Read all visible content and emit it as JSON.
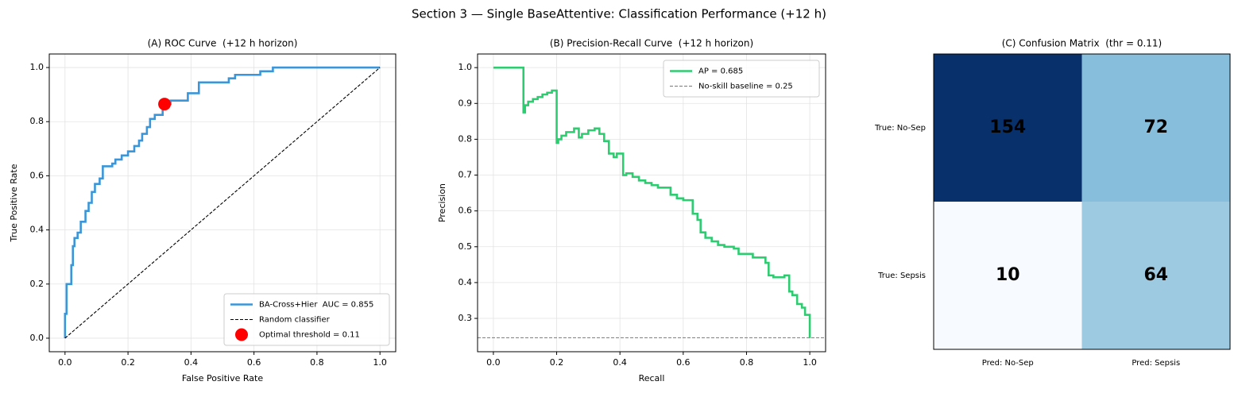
{
  "title": "Section 3 — Single BaseAttentive: Classification Performance (+12 h)",
  "chart_data": [
    {
      "type": "line",
      "title": "(A) ROC Curve  (+12 h horizon)",
      "x_label": "False Positive Rate",
      "y_label": "True Positive Rate",
      "xlim": [
        -0.05,
        1.05
      ],
      "ylim": [
        -0.05,
        1.05
      ],
      "xticks": [
        {
          "value": 0,
          "label": "0.0"
        },
        {
          "value": 0.2,
          "label": "0.2"
        },
        {
          "value": 0.4,
          "label": "0.4"
        },
        {
          "value": 0.6,
          "label": "0.6"
        },
        {
          "value": 0.8,
          "label": "0.8"
        },
        {
          "value": 1,
          "label": "1.0"
        }
      ],
      "yticks": [
        {
          "value": 0,
          "label": "0.0"
        },
        {
          "value": 0.2,
          "label": "0.2"
        },
        {
          "value": 0.4,
          "label": "0.4"
        },
        {
          "value": 0.6,
          "label": "0.6"
        },
        {
          "value": 0.8,
          "label": "0.8"
        },
        {
          "value": 1,
          "label": "1.0"
        }
      ],
      "grid": true,
      "legend": "lower-right",
      "series": [
        {
          "name": "BA-Cross+Hier  AUC = 0.855",
          "color": "#3a96d8",
          "style": "solid",
          "x": [
            0,
            0,
            0.005,
            0.005,
            0.02,
            0.02,
            0.025,
            0.025,
            0.03,
            0.03,
            0.04,
            0.04,
            0.05,
            0.05,
            0.065,
            0.065,
            0.075,
            0.075,
            0.085,
            0.085,
            0.095,
            0.095,
            0.11,
            0.11,
            0.12,
            0.12,
            0.15,
            0.15,
            0.16,
            0.16,
            0.18,
            0.18,
            0.2,
            0.2,
            0.22,
            0.22,
            0.235,
            0.235,
            0.245,
            0.245,
            0.26,
            0.26,
            0.27,
            0.27,
            0.285,
            0.285,
            0.31,
            0.31,
            0.335,
            0.335,
            0.39,
            0.39,
            0.425,
            0.425,
            0.52,
            0.52,
            0.54,
            0.54,
            0.62,
            0.62,
            0.66,
            0.66,
            1.0
          ],
          "values": [
            0,
            0.09,
            0.09,
            0.2,
            0.2,
            0.27,
            0.27,
            0.34,
            0.34,
            0.37,
            0.37,
            0.39,
            0.39,
            0.43,
            0.43,
            0.47,
            0.47,
            0.5,
            0.5,
            0.54,
            0.54,
            0.57,
            0.57,
            0.59,
            0.59,
            0.635,
            0.635,
            0.645,
            0.645,
            0.66,
            0.66,
            0.675,
            0.675,
            0.69,
            0.69,
            0.71,
            0.71,
            0.73,
            0.73,
            0.755,
            0.755,
            0.78,
            0.78,
            0.81,
            0.81,
            0.825,
            0.825,
            0.865,
            0.865,
            0.878,
            0.878,
            0.905,
            0.905,
            0.945,
            0.945,
            0.96,
            0.96,
            0.973,
            0.973,
            0.986,
            0.986,
            1.0,
            1.0
          ]
        },
        {
          "name": "Random classifier",
          "color": "#000000",
          "style": "dashed",
          "x": [
            0,
            1
          ],
          "values": [
            0,
            1
          ]
        },
        {
          "name": "Optimal threshold = 0.11",
          "color": "#ff0000",
          "style": "point",
          "x": [
            0.316
          ],
          "values": [
            0.865
          ]
        }
      ]
    },
    {
      "type": "line",
      "title": "(B) Precision-Recall Curve  (+12 h horizon)",
      "x_label": "Recall",
      "y_label": "Precision",
      "xlim": [
        -0.05,
        1.05
      ],
      "ylim": [
        0.207,
        1.038
      ],
      "xticks": [
        {
          "value": 0,
          "label": "0.0"
        },
        {
          "value": 0.2,
          "label": "0.2"
        },
        {
          "value": 0.4,
          "label": "0.4"
        },
        {
          "value": 0.6,
          "label": "0.6"
        },
        {
          "value": 0.8,
          "label": "0.8"
        },
        {
          "value": 1,
          "label": "1.0"
        }
      ],
      "yticks": [
        0.3,
        0.4,
        0.5,
        0.6,
        0.7,
        0.8,
        0.9,
        {
          "value": 1,
          "label": "1.0"
        }
      ],
      "grid": true,
      "legend": "upper-right",
      "series": [
        {
          "name": "AP = 0.685",
          "color": "#2ecc71",
          "style": "solid",
          "x": [
            0,
            0.095,
            0.095,
            0.1,
            0.1,
            0.11,
            0.11,
            0.125,
            0.125,
            0.14,
            0.14,
            0.155,
            0.155,
            0.17,
            0.17,
            0.185,
            0.185,
            0.2,
            0.2,
            0.205,
            0.205,
            0.215,
            0.215,
            0.23,
            0.23,
            0.255,
            0.255,
            0.27,
            0.27,
            0.28,
            0.28,
            0.3,
            0.3,
            0.32,
            0.32,
            0.335,
            0.335,
            0.35,
            0.35,
            0.365,
            0.365,
            0.38,
            0.38,
            0.39,
            0.39,
            0.41,
            0.41,
            0.42,
            0.42,
            0.44,
            0.44,
            0.46,
            0.46,
            0.48,
            0.48,
            0.5,
            0.5,
            0.52,
            0.52,
            0.56,
            0.56,
            0.58,
            0.58,
            0.6,
            0.6,
            0.63,
            0.63,
            0.645,
            0.645,
            0.655,
            0.655,
            0.67,
            0.67,
            0.69,
            0.69,
            0.71,
            0.71,
            0.73,
            0.73,
            0.76,
            0.76,
            0.775,
            0.775,
            0.82,
            0.82,
            0.86,
            0.86,
            0.87,
            0.87,
            0.885,
            0.885,
            0.92,
            0.92,
            0.935,
            0.935,
            0.945,
            0.945,
            0.96,
            0.96,
            0.975,
            0.975,
            0.985,
            0.985,
            1.0,
            1.0
          ],
          "values": [
            1,
            1,
            0.875,
            0.875,
            0.895,
            0.895,
            0.905,
            0.905,
            0.912,
            0.912,
            0.918,
            0.918,
            0.925,
            0.925,
            0.93,
            0.93,
            0.936,
            0.936,
            0.79,
            0.79,
            0.8,
            0.8,
            0.81,
            0.81,
            0.82,
            0.82,
            0.83,
            0.83,
            0.805,
            0.805,
            0.815,
            0.815,
            0.825,
            0.825,
            0.83,
            0.83,
            0.815,
            0.815,
            0.795,
            0.795,
            0.76,
            0.76,
            0.75,
            0.75,
            0.76,
            0.76,
            0.7,
            0.7,
            0.705,
            0.705,
            0.695,
            0.695,
            0.685,
            0.685,
            0.678,
            0.678,
            0.672,
            0.672,
            0.665,
            0.665,
            0.645,
            0.645,
            0.635,
            0.635,
            0.63,
            0.63,
            0.592,
            0.592,
            0.575,
            0.575,
            0.54,
            0.54,
            0.525,
            0.525,
            0.515,
            0.515,
            0.505,
            0.505,
            0.5,
            0.5,
            0.495,
            0.495,
            0.48,
            0.48,
            0.47,
            0.47,
            0.455,
            0.455,
            0.42,
            0.42,
            0.415,
            0.415,
            0.42,
            0.42,
            0.375,
            0.375,
            0.365,
            0.365,
            0.34,
            0.34,
            0.33,
            0.33,
            0.31,
            0.31,
            0.245
          ]
        }
      ],
      "hlines": [
        {
          "name": "No-skill baseline = 0.25",
          "color": "#777777",
          "style": "dashed",
          "value": 0.246
        }
      ]
    },
    {
      "type": "heatmap",
      "title": "(C) Confusion Matrix  (thr = 0.11)",
      "x_categories": [
        "Pred: No-Sep",
        "Pred: Sepsis"
      ],
      "y_categories": [
        "True: No-Sep",
        "True: Sepsis"
      ],
      "values": [
        [
          154,
          72
        ],
        [
          10,
          64
        ]
      ],
      "colormap": [
        "#f7fbff",
        "#deebf7",
        "#c6dbef",
        "#9ecae1",
        "#6baed6",
        "#4292c6",
        "#2171b5",
        "#08519c",
        "#08306b"
      ],
      "text_colors": [
        "#000000",
        "#ffffff"
      ]
    }
  ]
}
